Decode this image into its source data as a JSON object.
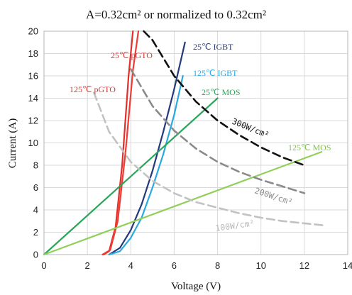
{
  "chart_data": {
    "type": "line",
    "title": "A=0.32cm² or normalized to 0.32cm²",
    "xlabel": "Voltage (V)",
    "ylabel": "Current (A)",
    "xlim": [
      0,
      14
    ],
    "ylim": [
      0,
      20
    ],
    "xticks": [
      0,
      2,
      4,
      6,
      8,
      10,
      12,
      14
    ],
    "yticks": [
      0,
      2,
      4,
      6,
      8,
      10,
      12,
      14,
      16,
      18,
      20
    ],
    "grid": true,
    "series": [
      {
        "name": "125℃ pGTO",
        "color": "#e0302a",
        "dash": "solid",
        "x": [
          2.75,
          3.0,
          3.3,
          3.6,
          3.9,
          4.1
        ],
        "y": [
          0,
          0.3,
          2.5,
          8,
          16,
          20
        ]
      },
      {
        "name": "25℃ pGTO",
        "color": "#ee3b33",
        "dash": "solid",
        "x": [
          2.7,
          3.05,
          3.4,
          3.75,
          4.1,
          4.35
        ],
        "y": [
          0,
          0.4,
          3,
          9,
          16.5,
          20
        ]
      },
      {
        "name": "25℃ IGBT",
        "color": "#243a7a",
        "dash": "solid",
        "x": [
          3.0,
          3.5,
          4.0,
          4.5,
          5.0,
          5.5,
          6.0,
          6.5
        ],
        "y": [
          0,
          0.6,
          2.2,
          4.5,
          7.5,
          11,
          14.8,
          19
        ]
      },
      {
        "name": "125℃ IGBT",
        "color": "#2aa9e0",
        "dash": "solid",
        "x": [
          3.0,
          3.5,
          4.0,
          4.5,
          5.0,
          5.5,
          6.0,
          6.4
        ],
        "y": [
          0,
          0.3,
          1.5,
          3.3,
          6,
          9,
          12.5,
          16
        ]
      },
      {
        "name": "25℃ MOS",
        "color": "#2aa65a",
        "dash": "solid",
        "x": [
          0,
          8
        ],
        "y": [
          0,
          14
        ]
      },
      {
        "name": "125℃ MOS",
        "color": "#90cf5a",
        "dash": "solid",
        "x": [
          0,
          12.8
        ],
        "y": [
          0,
          9.2
        ]
      },
      {
        "name": "300W/cm²",
        "color": "#111111",
        "dash": "dashed",
        "x": [
          4.6,
          5.0,
          6.0,
          7.0,
          8.0,
          9.0,
          10.0,
          11.0,
          12.0
        ],
        "y": [
          20,
          19.2,
          16.0,
          13.7,
          12.0,
          10.7,
          9.6,
          8.7,
          8.0
        ]
      },
      {
        "name": "200W/cm²",
        "color": "#8a8a8a",
        "dash": "dashed",
        "x": [
          4.0,
          5.0,
          6.0,
          7.0,
          8.0,
          9.0,
          10.0,
          11.0,
          12.0
        ],
        "y": [
          16.6,
          13.3,
          11.1,
          9.5,
          8.3,
          7.4,
          6.7,
          6.1,
          5.5
        ]
      },
      {
        "name": "100W/cm²",
        "color": "#c2c2c2",
        "dash": "dashed",
        "x": [
          2.3,
          3.0,
          4.0,
          5.0,
          6.0,
          7.0,
          8.0,
          9.0,
          10.0,
          11.0,
          12.0,
          13.0
        ],
        "y": [
          14.5,
          11.0,
          8.3,
          6.6,
          5.5,
          4.7,
          4.2,
          3.7,
          3.3,
          3.0,
          2.8,
          2.6
        ]
      }
    ]
  }
}
